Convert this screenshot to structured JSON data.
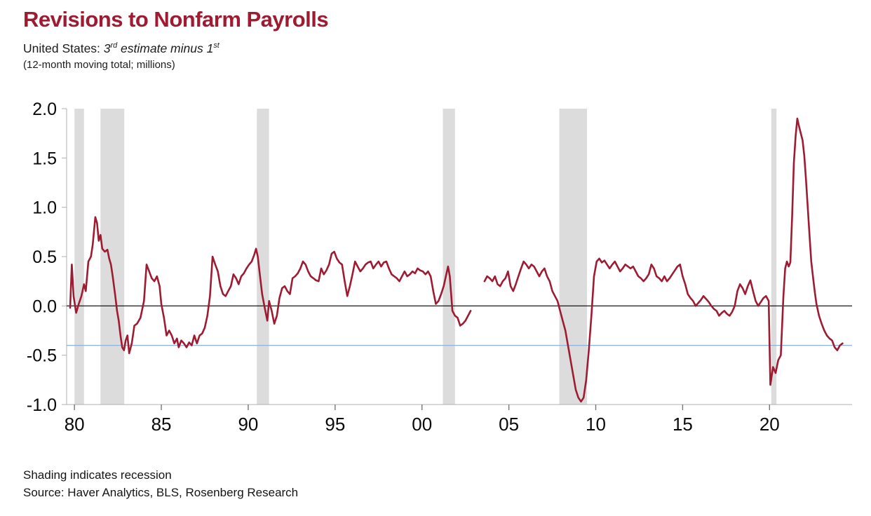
{
  "page": {
    "title": "Revisions to Nonfarm Payrolls",
    "subtitle": {
      "prefix": "United States: ",
      "num1": "3",
      "sup1": "rd",
      "mid": " estimate minus 1",
      "sup2": "st"
    },
    "note": "(12-month moving total; millions)",
    "footnote1": "Shading indicates recession",
    "footnote2": "Source: Haver Analytics, BLS, Rosenberg Research"
  },
  "colors": {
    "title": "#9e1b32",
    "line": "#9e1b32",
    "recession": "#dcdcdc",
    "reference": "#8fb3d6",
    "zero": "#000000",
    "axis": "#b0b0b0",
    "tick_text": "#0a0a0a"
  },
  "chart_data": {
    "type": "line",
    "title": "Revisions to Nonfarm Payrolls",
    "subtitle": "United States: 3rd estimate minus 1st",
    "note": "(12-month moving total; millions)",
    "xlabel": "",
    "ylabel": "",
    "xlim": [
      1979.55,
      2024.75
    ],
    "ylim": [
      -1.0,
      2.0
    ],
    "grid": false,
    "legend": "none",
    "yticks": [
      {
        "v": 2.0,
        "label": "2.0"
      },
      {
        "v": 1.5,
        "label": "1.5"
      },
      {
        "v": 1.0,
        "label": "1.0"
      },
      {
        "v": 0.5,
        "label": "0.5"
      },
      {
        "v": 0.0,
        "label": "0.0"
      },
      {
        "v": -0.5,
        "label": "-0.5"
      },
      {
        "v": -1.0,
        "label": "-1.0"
      }
    ],
    "xticks": [
      {
        "v": 1980,
        "label": "80"
      },
      {
        "v": 1985,
        "label": "85"
      },
      {
        "v": 1990,
        "label": "90"
      },
      {
        "v": 1995,
        "label": "95"
      },
      {
        "v": 2000,
        "label": "00"
      },
      {
        "v": 2005,
        "label": "05"
      },
      {
        "v": 2010,
        "label": "10"
      },
      {
        "v": 2015,
        "label": "15"
      },
      {
        "v": 2020,
        "label": "20"
      }
    ],
    "zero_line": 0.0,
    "reference_line": -0.4,
    "recession_bands": [
      [
        1980.0,
        1980.55
      ],
      [
        1981.5,
        1982.87
      ],
      [
        1990.5,
        1991.2
      ],
      [
        2001.2,
        2001.9
      ],
      [
        2007.9,
        2009.5
      ],
      [
        2020.1,
        2020.4
      ]
    ],
    "series_name": "Nonfarm payrolls revisions, 3rd estimate minus 1st (12-month moving total, millions)",
    "points": [
      [
        1979.75,
        -0.02
      ],
      [
        1979.85,
        0.42
      ],
      [
        1979.95,
        0.1
      ],
      [
        1980.1,
        -0.07
      ],
      [
        1980.25,
        0.02
      ],
      [
        1980.4,
        0.1
      ],
      [
        1980.55,
        0.22
      ],
      [
        1980.65,
        0.15
      ],
      [
        1980.8,
        0.45
      ],
      [
        1980.95,
        0.5
      ],
      [
        1981.05,
        0.62
      ],
      [
        1981.2,
        0.9
      ],
      [
        1981.3,
        0.84
      ],
      [
        1981.4,
        0.66
      ],
      [
        1981.5,
        0.72
      ],
      [
        1981.6,
        0.58
      ],
      [
        1981.75,
        0.55
      ],
      [
        1981.9,
        0.57
      ],
      [
        1982.0,
        0.48
      ],
      [
        1982.1,
        0.42
      ],
      [
        1982.2,
        0.3
      ],
      [
        1982.35,
        0.1
      ],
      [
        1982.45,
        -0.05
      ],
      [
        1982.55,
        -0.15
      ],
      [
        1982.65,
        -0.3
      ],
      [
        1982.75,
        -0.42
      ],
      [
        1982.85,
        -0.45
      ],
      [
        1982.95,
        -0.35
      ],
      [
        1983.05,
        -0.3
      ],
      [
        1983.15,
        -0.48
      ],
      [
        1983.3,
        -0.38
      ],
      [
        1983.45,
        -0.2
      ],
      [
        1983.6,
        -0.18
      ],
      [
        1983.8,
        -0.12
      ],
      [
        1984.0,
        0.05
      ],
      [
        1984.15,
        0.42
      ],
      [
        1984.3,
        0.35
      ],
      [
        1984.45,
        0.28
      ],
      [
        1984.6,
        0.25
      ],
      [
        1984.75,
        0.3
      ],
      [
        1984.9,
        0.2
      ],
      [
        1985.0,
        0.02
      ],
      [
        1985.15,
        -0.12
      ],
      [
        1985.3,
        -0.3
      ],
      [
        1985.45,
        -0.25
      ],
      [
        1985.6,
        -0.3
      ],
      [
        1985.75,
        -0.38
      ],
      [
        1985.9,
        -0.33
      ],
      [
        1986.0,
        -0.42
      ],
      [
        1986.15,
        -0.35
      ],
      [
        1986.3,
        -0.38
      ],
      [
        1986.45,
        -0.42
      ],
      [
        1986.6,
        -0.37
      ],
      [
        1986.75,
        -0.4
      ],
      [
        1986.9,
        -0.3
      ],
      [
        1987.05,
        -0.38
      ],
      [
        1987.2,
        -0.3
      ],
      [
        1987.35,
        -0.28
      ],
      [
        1987.5,
        -0.22
      ],
      [
        1987.65,
        -0.1
      ],
      [
        1987.8,
        0.1
      ],
      [
        1987.95,
        0.5
      ],
      [
        1988.1,
        0.42
      ],
      [
        1988.25,
        0.35
      ],
      [
        1988.4,
        0.2
      ],
      [
        1988.55,
        0.12
      ],
      [
        1988.7,
        0.1
      ],
      [
        1988.85,
        0.15
      ],
      [
        1989.0,
        0.2
      ],
      [
        1989.15,
        0.32
      ],
      [
        1989.3,
        0.28
      ],
      [
        1989.45,
        0.22
      ],
      [
        1989.6,
        0.3
      ],
      [
        1989.75,
        0.33
      ],
      [
        1989.9,
        0.38
      ],
      [
        1990.05,
        0.42
      ],
      [
        1990.2,
        0.45
      ],
      [
        1990.35,
        0.52
      ],
      [
        1990.45,
        0.58
      ],
      [
        1990.55,
        0.5
      ],
      [
        1990.65,
        0.35
      ],
      [
        1990.8,
        0.12
      ],
      [
        1990.95,
        -0.02
      ],
      [
        1991.1,
        -0.15
      ],
      [
        1991.2,
        0.05
      ],
      [
        1991.35,
        -0.05
      ],
      [
        1991.5,
        -0.18
      ],
      [
        1991.65,
        -0.1
      ],
      [
        1991.8,
        0.08
      ],
      [
        1991.95,
        0.18
      ],
      [
        1992.1,
        0.2
      ],
      [
        1992.25,
        0.15
      ],
      [
        1992.4,
        0.12
      ],
      [
        1992.55,
        0.28
      ],
      [
        1992.7,
        0.3
      ],
      [
        1992.85,
        0.33
      ],
      [
        1993.0,
        0.38
      ],
      [
        1993.15,
        0.45
      ],
      [
        1993.3,
        0.42
      ],
      [
        1993.45,
        0.35
      ],
      [
        1993.6,
        0.3
      ],
      [
        1993.75,
        0.28
      ],
      [
        1993.9,
        0.26
      ],
      [
        1994.05,
        0.25
      ],
      [
        1994.2,
        0.38
      ],
      [
        1994.35,
        0.32
      ],
      [
        1994.5,
        0.36
      ],
      [
        1994.65,
        0.42
      ],
      [
        1994.8,
        0.53
      ],
      [
        1994.95,
        0.55
      ],
      [
        1995.1,
        0.48
      ],
      [
        1995.25,
        0.44
      ],
      [
        1995.4,
        0.42
      ],
      [
        1995.55,
        0.25
      ],
      [
        1995.7,
        0.1
      ],
      [
        1995.85,
        0.2
      ],
      [
        1996.0,
        0.32
      ],
      [
        1996.15,
        0.45
      ],
      [
        1996.3,
        0.4
      ],
      [
        1996.45,
        0.35
      ],
      [
        1996.6,
        0.38
      ],
      [
        1996.75,
        0.42
      ],
      [
        1996.9,
        0.44
      ],
      [
        1997.05,
        0.45
      ],
      [
        1997.2,
        0.38
      ],
      [
        1997.35,
        0.42
      ],
      [
        1997.5,
        0.45
      ],
      [
        1997.65,
        0.4
      ],
      [
        1997.8,
        0.44
      ],
      [
        1997.95,
        0.45
      ],
      [
        1998.1,
        0.38
      ],
      [
        1998.25,
        0.32
      ],
      [
        1998.4,
        0.3
      ],
      [
        1998.55,
        0.28
      ],
      [
        1998.7,
        0.25
      ],
      [
        1998.85,
        0.3
      ],
      [
        1999.0,
        0.35
      ],
      [
        1999.15,
        0.3
      ],
      [
        1999.3,
        0.32
      ],
      [
        1999.45,
        0.35
      ],
      [
        1999.6,
        0.33
      ],
      [
        1999.75,
        0.38
      ],
      [
        1999.9,
        0.36
      ],
      [
        2000.05,
        0.35
      ],
      [
        2000.2,
        0.32
      ],
      [
        2000.35,
        0.35
      ],
      [
        2000.5,
        0.3
      ],
      [
        2000.65,
        0.15
      ],
      [
        2000.8,
        0.02
      ],
      [
        2000.95,
        0.05
      ],
      [
        2001.1,
        0.12
      ],
      [
        2001.25,
        0.2
      ],
      [
        2001.4,
        0.32
      ],
      [
        2001.5,
        0.4
      ],
      [
        2001.6,
        0.3
      ],
      [
        2001.75,
        -0.05
      ],
      [
        2001.9,
        -0.1
      ],
      [
        2002.05,
        -0.12
      ],
      [
        2002.2,
        -0.2
      ],
      [
        2002.35,
        -0.18
      ],
      [
        2002.5,
        -0.15
      ],
      [
        2002.65,
        -0.1
      ],
      [
        2002.8,
        -0.05
      ],
      null,
      [
        2003.6,
        0.25
      ],
      [
        2003.75,
        0.3
      ],
      [
        2003.9,
        0.28
      ],
      [
        2004.05,
        0.25
      ],
      [
        2004.2,
        0.3
      ],
      [
        2004.35,
        0.22
      ],
      [
        2004.5,
        0.2
      ],
      [
        2004.65,
        0.25
      ],
      [
        2004.8,
        0.28
      ],
      [
        2004.95,
        0.35
      ],
      [
        2005.1,
        0.2
      ],
      [
        2005.25,
        0.15
      ],
      [
        2005.4,
        0.22
      ],
      [
        2005.55,
        0.3
      ],
      [
        2005.7,
        0.38
      ],
      [
        2005.85,
        0.45
      ],
      [
        2006.0,
        0.42
      ],
      [
        2006.15,
        0.38
      ],
      [
        2006.3,
        0.42
      ],
      [
        2006.45,
        0.4
      ],
      [
        2006.6,
        0.35
      ],
      [
        2006.75,
        0.3
      ],
      [
        2006.9,
        0.35
      ],
      [
        2007.05,
        0.38
      ],
      [
        2007.2,
        0.3
      ],
      [
        2007.35,
        0.25
      ],
      [
        2007.5,
        0.15
      ],
      [
        2007.65,
        0.1
      ],
      [
        2007.8,
        0.05
      ],
      [
        2007.95,
        -0.05
      ],
      [
        2008.1,
        -0.15
      ],
      [
        2008.25,
        -0.25
      ],
      [
        2008.4,
        -0.4
      ],
      [
        2008.55,
        -0.55
      ],
      [
        2008.7,
        -0.7
      ],
      [
        2008.85,
        -0.85
      ],
      [
        2009.0,
        -0.93
      ],
      [
        2009.15,
        -0.97
      ],
      [
        2009.3,
        -0.93
      ],
      [
        2009.45,
        -0.75
      ],
      [
        2009.6,
        -0.45
      ],
      [
        2009.75,
        -0.1
      ],
      [
        2009.9,
        0.3
      ],
      [
        2010.05,
        0.45
      ],
      [
        2010.2,
        0.48
      ],
      [
        2010.35,
        0.44
      ],
      [
        2010.5,
        0.46
      ],
      [
        2010.65,
        0.42
      ],
      [
        2010.8,
        0.38
      ],
      [
        2010.95,
        0.42
      ],
      [
        2011.1,
        0.45
      ],
      [
        2011.25,
        0.4
      ],
      [
        2011.4,
        0.35
      ],
      [
        2011.55,
        0.38
      ],
      [
        2011.7,
        0.42
      ],
      [
        2011.85,
        0.4
      ],
      [
        2012.0,
        0.38
      ],
      [
        2012.15,
        0.4
      ],
      [
        2012.3,
        0.35
      ],
      [
        2012.45,
        0.3
      ],
      [
        2012.6,
        0.28
      ],
      [
        2012.75,
        0.25
      ],
      [
        2012.9,
        0.28
      ],
      [
        2013.05,
        0.32
      ],
      [
        2013.2,
        0.42
      ],
      [
        2013.35,
        0.38
      ],
      [
        2013.5,
        0.3
      ],
      [
        2013.65,
        0.28
      ],
      [
        2013.8,
        0.25
      ],
      [
        2013.95,
        0.3
      ],
      [
        2014.1,
        0.25
      ],
      [
        2014.25,
        0.28
      ],
      [
        2014.4,
        0.32
      ],
      [
        2014.55,
        0.36
      ],
      [
        2014.7,
        0.4
      ],
      [
        2014.85,
        0.42
      ],
      [
        2015.0,
        0.3
      ],
      [
        2015.15,
        0.22
      ],
      [
        2015.3,
        0.12
      ],
      [
        2015.45,
        0.08
      ],
      [
        2015.6,
        0.05
      ],
      [
        2015.75,
        0.0
      ],
      [
        2015.9,
        0.03
      ],
      [
        2016.05,
        0.06
      ],
      [
        2016.2,
        0.1
      ],
      [
        2016.35,
        0.07
      ],
      [
        2016.5,
        0.04
      ],
      [
        2016.65,
        0.0
      ],
      [
        2016.8,
        -0.03
      ],
      [
        2016.95,
        -0.05
      ],
      [
        2017.1,
        -0.1
      ],
      [
        2017.25,
        -0.07
      ],
      [
        2017.4,
        -0.05
      ],
      [
        2017.55,
        -0.08
      ],
      [
        2017.7,
        -0.1
      ],
      [
        2017.85,
        -0.06
      ],
      [
        2018.0,
        0.0
      ],
      [
        2018.15,
        0.15
      ],
      [
        2018.3,
        0.22
      ],
      [
        2018.45,
        0.18
      ],
      [
        2018.6,
        0.12
      ],
      [
        2018.75,
        0.2
      ],
      [
        2018.9,
        0.26
      ],
      [
        2019.05,
        0.15
      ],
      [
        2019.2,
        0.05
      ],
      [
        2019.35,
        0.0
      ],
      [
        2019.5,
        0.04
      ],
      [
        2019.65,
        0.08
      ],
      [
        2019.8,
        0.1
      ],
      [
        2019.95,
        0.05
      ],
      [
        2020.05,
        -0.8
      ],
      [
        2020.2,
        -0.62
      ],
      [
        2020.35,
        -0.68
      ],
      [
        2020.5,
        -0.55
      ],
      [
        2020.65,
        -0.5
      ],
      [
        2020.8,
        0.1
      ],
      [
        2020.9,
        0.38
      ],
      [
        2021.0,
        0.45
      ],
      [
        2021.1,
        0.4
      ],
      [
        2021.2,
        0.44
      ],
      [
        2021.3,
        0.9
      ],
      [
        2021.4,
        1.45
      ],
      [
        2021.5,
        1.72
      ],
      [
        2021.6,
        1.9
      ],
      [
        2021.7,
        1.82
      ],
      [
        2021.8,
        1.75
      ],
      [
        2021.9,
        1.68
      ],
      [
        2022.0,
        1.52
      ],
      [
        2022.1,
        1.28
      ],
      [
        2022.2,
        1.0
      ],
      [
        2022.3,
        0.72
      ],
      [
        2022.4,
        0.45
      ],
      [
        2022.5,
        0.3
      ],
      [
        2022.6,
        0.15
      ],
      [
        2022.7,
        0.02
      ],
      [
        2022.85,
        -0.1
      ],
      [
        2023.0,
        -0.18
      ],
      [
        2023.15,
        -0.25
      ],
      [
        2023.3,
        -0.3
      ],
      [
        2023.45,
        -0.33
      ],
      [
        2023.6,
        -0.35
      ],
      [
        2023.75,
        -0.42
      ],
      [
        2023.9,
        -0.45
      ],
      [
        2024.05,
        -0.4
      ],
      [
        2024.2,
        -0.38
      ]
    ]
  }
}
